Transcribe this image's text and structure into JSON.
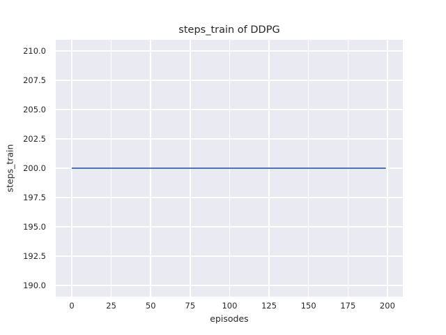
{
  "figure": {
    "background_color": "#ffffff"
  },
  "chart_data": {
    "type": "line",
    "title": "steps_train of DDPG",
    "xlabel": "episodes",
    "ylabel": "steps_train",
    "x_tick_values": [
      0,
      25,
      50,
      75,
      100,
      125,
      150,
      175,
      200
    ],
    "x_tick_labels": [
      "0",
      "25",
      "50",
      "75",
      "100",
      "125",
      "150",
      "175",
      "200"
    ],
    "y_tick_values": [
      210.0,
      207.5,
      205.0,
      202.5,
      200.0,
      197.5,
      195.0,
      192.5,
      190.0
    ],
    "y_tick_labels": [
      "210.0",
      "207.5",
      "205.0",
      "202.5",
      "200.0",
      "197.5",
      "195.0",
      "192.5",
      "190.0"
    ],
    "xlim": [
      -10.15,
      209.75
    ],
    "ylim": [
      189.05,
      210.95
    ],
    "grid": true,
    "legend": false,
    "plot_background_color": "#eaeaf2",
    "grid_color": "#ffffff",
    "text_color": "#262626",
    "series": [
      {
        "name": "steps_train",
        "color": "#4c72b0",
        "description": "constant value 200 for every episode from 0 to 199",
        "x": [
          0,
          199
        ],
        "y": [
          200,
          200
        ]
      }
    ]
  }
}
